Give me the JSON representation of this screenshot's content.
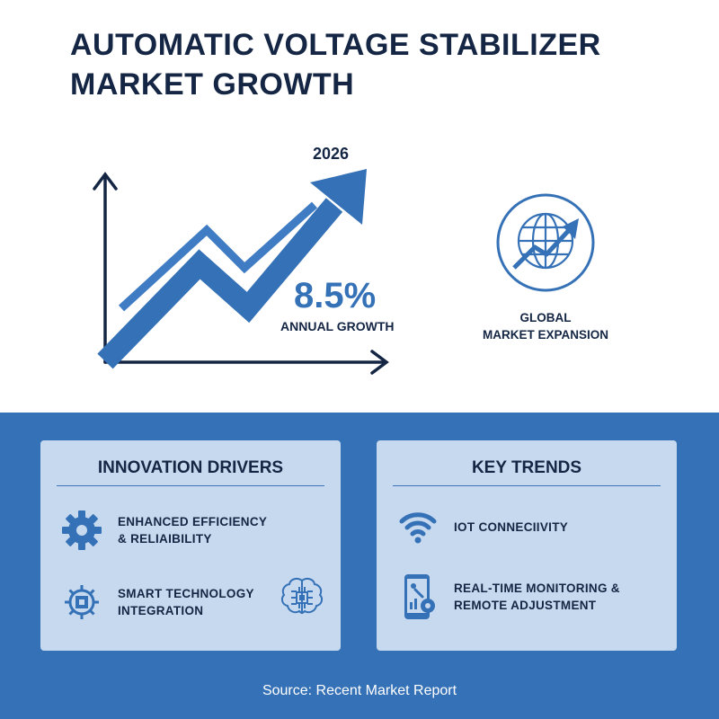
{
  "title": {
    "line1": "AUTOMATIC VOLTAGE STABILIZER",
    "line2": "MARKET GROWTH"
  },
  "growth_chart": {
    "year_label": "2026",
    "value_label": "8.5%",
    "caption": "ANNUAL GROWTH"
  },
  "global": {
    "line1": "GLOBAL",
    "line2": "MARKET EXPANSION",
    "icon": "globe-with-arrow-icon"
  },
  "innovation": {
    "title": "INNOVATION DRIVERS",
    "items": [
      {
        "line1": "ENHANCED EFFICIENCY",
        "line2": "& RELIAIBILITY",
        "icon": "gear-icon"
      },
      {
        "line1": "SMART TECHNOLOGY",
        "line2": "INTEGRATION",
        "icon": "circuit-gear-icon"
      }
    ],
    "extra_icon": "brain-circuit-icon"
  },
  "trends": {
    "title": "KEY TRENDS",
    "items": [
      {
        "line1": "IOT CONNECIIVITY",
        "line2": "",
        "icon": "wifi-icon"
      },
      {
        "line1": "REAL-TIME MONITORING &",
        "line2": "REMOTE ADJUSTMENT",
        "icon": "smartphone-settings-icon"
      }
    ]
  },
  "footer": {
    "source": "Source: Recent Market Report"
  },
  "colors": {
    "navy": "#142644",
    "blue": "#3571b6",
    "card": "#c6d9ee"
  }
}
